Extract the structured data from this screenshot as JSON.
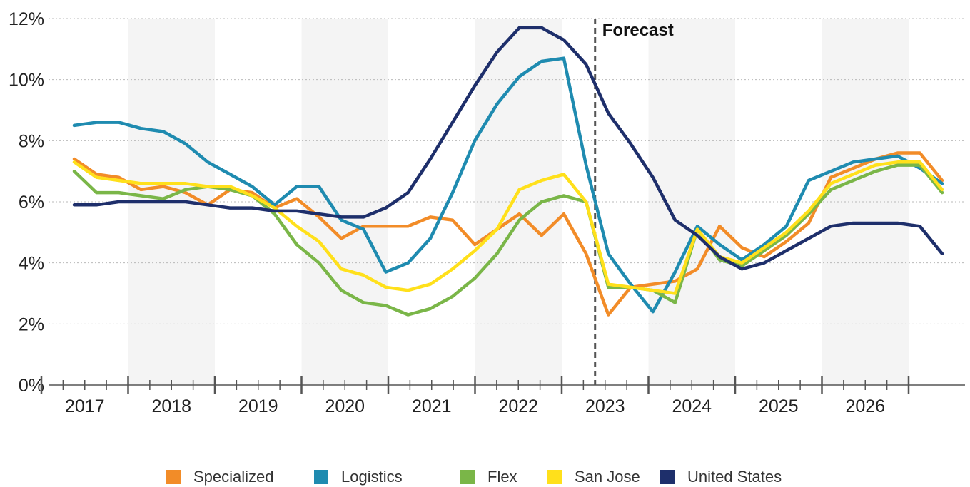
{
  "chart_data": {
    "type": "line",
    "annotation": "Forecast",
    "y_tick_labels": [
      "0%",
      "2%",
      "4%",
      "6%",
      "8%",
      "10%",
      "12%"
    ],
    "year_labels": [
      "2017",
      "2018",
      "2019",
      "2020",
      "2021",
      "2022",
      "2023",
      "2024",
      "2025",
      "2026"
    ],
    "ylim": [
      0,
      12
    ],
    "grid": true,
    "legend_position": "bottom",
    "forecast_start_quarter_index": 24,
    "x_quarter_count": 40,
    "series": [
      {
        "name": "Specialized",
        "color": "#f28c28",
        "values": [
          7.4,
          6.9,
          6.8,
          6.4,
          6.5,
          6.3,
          5.9,
          6.4,
          6.3,
          5.8,
          6.1,
          5.5,
          4.8,
          5.2,
          5.2,
          5.2,
          5.5,
          5.4,
          4.6,
          5.1,
          5.6,
          4.9,
          5.6,
          4.3,
          2.3,
          3.2,
          3.3,
          3.4,
          3.8,
          5.2,
          4.5,
          4.2,
          4.7,
          5.3,
          6.8,
          7.1,
          7.4,
          7.6,
          7.6,
          6.7
        ]
      },
      {
        "name": "Logistics",
        "color": "#1f8bb0",
        "values": [
          8.5,
          8.6,
          8.6,
          8.4,
          8.3,
          7.9,
          7.3,
          6.9,
          6.5,
          5.9,
          6.5,
          6.5,
          5.4,
          5.1,
          3.7,
          4.0,
          4.8,
          6.3,
          8.0,
          9.2,
          10.1,
          10.6,
          10.7,
          7.2,
          4.3,
          3.3,
          2.4,
          3.7,
          5.2,
          4.6,
          4.1,
          4.6,
          5.2,
          6.7,
          7.0,
          7.3,
          7.4,
          7.5,
          7.1,
          6.6
        ]
      },
      {
        "name": "Flex",
        "color": "#7ab648",
        "values": [
          7.0,
          6.3,
          6.3,
          6.2,
          6.1,
          6.4,
          6.5,
          6.4,
          6.2,
          5.6,
          4.6,
          4.0,
          3.1,
          2.7,
          2.6,
          2.3,
          2.5,
          2.9,
          3.5,
          4.3,
          5.4,
          6.0,
          6.2,
          6.0,
          3.2,
          3.2,
          3.1,
          2.7,
          5.1,
          4.1,
          3.9,
          4.4,
          4.9,
          5.6,
          6.4,
          6.7,
          7.0,
          7.2,
          7.2,
          6.3
        ]
      },
      {
        "name": "San Jose",
        "color": "#ffe01b",
        "values": [
          7.3,
          6.8,
          6.7,
          6.6,
          6.6,
          6.6,
          6.5,
          6.5,
          6.2,
          5.8,
          5.2,
          4.7,
          3.8,
          3.6,
          3.2,
          3.1,
          3.3,
          3.8,
          4.4,
          5.1,
          6.4,
          6.7,
          6.9,
          6.0,
          3.3,
          3.2,
          3.1,
          3.0,
          5.1,
          4.2,
          4.0,
          4.5,
          5.0,
          5.7,
          6.6,
          6.9,
          7.2,
          7.3,
          7.3,
          6.4
        ]
      },
      {
        "name": "United States",
        "color": "#1e2f6b",
        "values": [
          5.9,
          5.9,
          6.0,
          6.0,
          6.0,
          6.0,
          5.9,
          5.8,
          5.8,
          5.7,
          5.7,
          5.6,
          5.5,
          5.5,
          5.8,
          6.3,
          7.4,
          8.6,
          9.8,
          10.9,
          11.7,
          11.7,
          11.3,
          10.5,
          8.9,
          7.9,
          6.8,
          5.4,
          4.9,
          4.2,
          3.8,
          4.0,
          4.4,
          4.8,
          5.2,
          5.3,
          5.3,
          5.3,
          5.2,
          4.3
        ]
      }
    ]
  }
}
